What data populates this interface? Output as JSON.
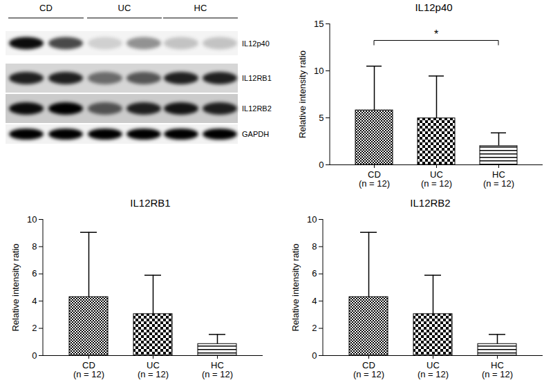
{
  "blot": {
    "groups": [
      {
        "label": "CD",
        "lanes": 2
      },
      {
        "label": "UC",
        "lanes": 2
      },
      {
        "label": "HC",
        "lanes": 2
      }
    ],
    "rows": [
      {
        "label": "IL12p40",
        "intensity": [
          0.95,
          0.7,
          0.15,
          0.4,
          0.2,
          0.2
        ]
      },
      {
        "label": "IL12RB1",
        "intensity": [
          0.85,
          0.85,
          0.5,
          0.6,
          0.85,
          0.85
        ]
      },
      {
        "label": "IL12RB2",
        "intensity": [
          0.95,
          1,
          0.6,
          0.85,
          0.9,
          0.85
        ]
      },
      {
        "label": "GAPDH",
        "intensity": [
          1,
          1,
          1,
          1,
          1,
          1
        ]
      }
    ]
  },
  "chart_data": [
    {
      "type": "bar",
      "title": "IL12p40",
      "y_label": "Relative intensity ratio",
      "categories": [
        "CD\n(n = 12)",
        "UC\n(n = 12)",
        "HC\n(n = 12)"
      ],
      "values": [
        5.8,
        4.95,
        2.0
      ],
      "errors": [
        4.7,
        4.5,
        1.4
      ],
      "ylim": [
        0,
        15
      ],
      "yticks": [
        0,
        5,
        10,
        15
      ],
      "color": "#000000",
      "annotation": {
        "text": "*",
        "from": 0,
        "to": 2
      }
    },
    {
      "type": "bar",
      "title": "IL12RB1",
      "y_label": "Relative intensity ratio",
      "categories": [
        "CD\n(n = 12)",
        "UC\n(n = 12)",
        "HC\n(n = 12)"
      ],
      "values": [
        4.3,
        3.05,
        0.85
      ],
      "errors": [
        4.75,
        2.85,
        0.7
      ],
      "ylim": [
        0,
        10
      ],
      "yticks": [
        0,
        2,
        4,
        6,
        8,
        10
      ],
      "color": "#000000"
    },
    {
      "type": "bar",
      "title": "IL12RB2",
      "y_label": "Relative intensity ratio",
      "categories": [
        "CD\n(n = 12)",
        "UC\n(n = 12)",
        "HC\n(n = 12)"
      ],
      "values": [
        4.3,
        3.05,
        0.85
      ],
      "errors": [
        4.75,
        2.85,
        0.7
      ],
      "ylim": [
        0,
        10
      ],
      "yticks": [
        0,
        2,
        4,
        6,
        8,
        10
      ],
      "color": "#000000"
    }
  ]
}
